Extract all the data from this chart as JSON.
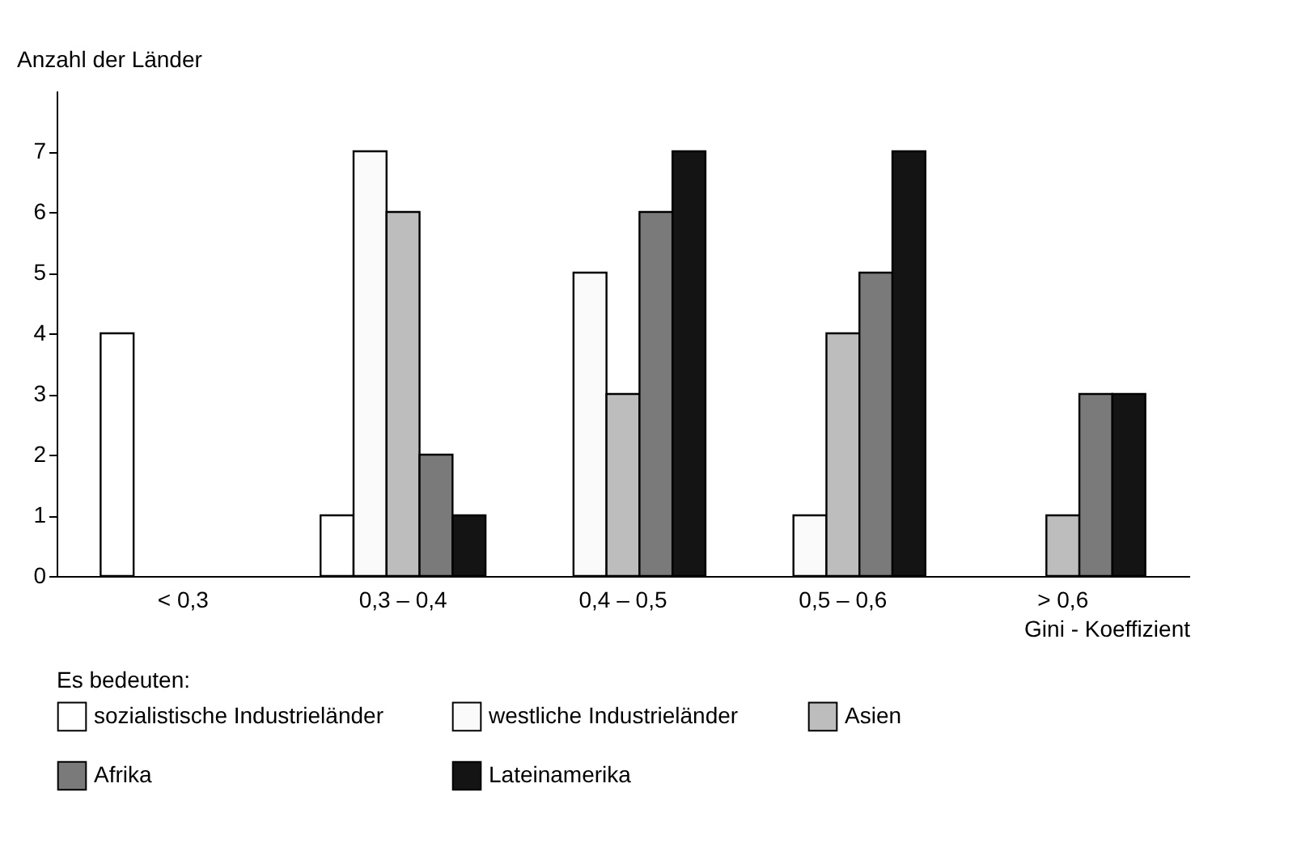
{
  "chart_data": {
    "type": "bar",
    "xlabel": "Gini - Koeffizient",
    "ylabel": "Anzahl der Länder",
    "legend_title": "Es bedeuten:",
    "legend": "bottom",
    "grid": false,
    "categories": [
      "< 0,3",
      "0,3 – 0,4",
      "0,4 – 0,5",
      "0,5 – 0,6",
      "> 0,6"
    ],
    "ylim": [
      0,
      8
    ],
    "yticks": [
      0,
      1,
      2,
      3,
      4,
      5,
      6,
      7
    ],
    "series": [
      {
        "name": "sozialistische Industrieländer",
        "color": "#ffffff",
        "values": [
          4,
          1,
          null,
          null,
          null
        ]
      },
      {
        "name": "westliche Industrieländer",
        "color": "#fafafa",
        "values": [
          null,
          7,
          5,
          1,
          null
        ]
      },
      {
        "name": "Asien",
        "color": "#bdbdbd",
        "values": [
          null,
          6,
          3,
          4,
          1
        ]
      },
      {
        "name": "Afrika",
        "color": "#7a7a7a",
        "values": [
          null,
          2,
          6,
          5,
          3
        ]
      },
      {
        "name": "Lateinamerika",
        "color": "#141414",
        "values": [
          null,
          1,
          7,
          7,
          3
        ]
      }
    ]
  }
}
